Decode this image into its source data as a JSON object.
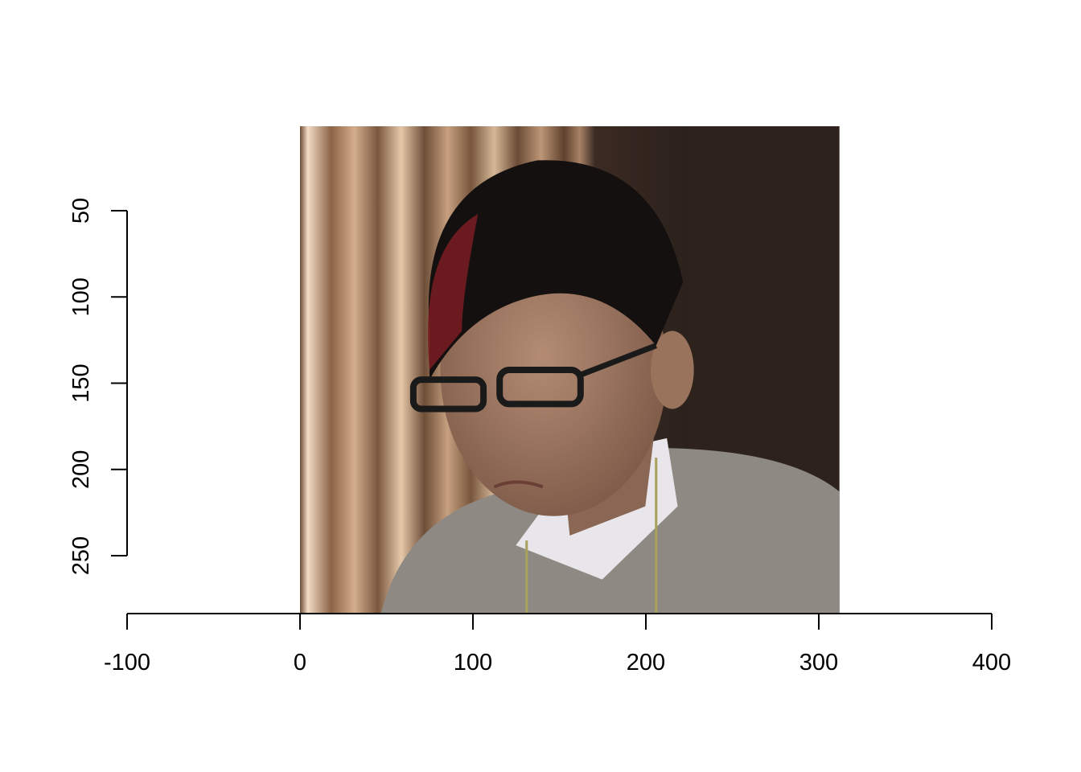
{
  "chart_data": {
    "type": "image",
    "title": "",
    "xlabel": "",
    "ylabel": "",
    "x_axis": {
      "ticks": [
        -100,
        0,
        100,
        200,
        300,
        400
      ],
      "range": [
        -100,
        400
      ]
    },
    "y_axis": {
      "ticks": [
        50,
        100,
        150,
        200,
        250
      ],
      "range": [
        50,
        250
      ],
      "reversed": true
    },
    "image_extent": {
      "x": [
        0,
        312
      ],
      "y": [
        0,
        282
      ]
    },
    "image_content": "photo-of-person-with-glasses",
    "colors": {
      "curtain_light": "#c9a27e",
      "curtain_dark": "#5a3d2a",
      "background_dark": "#2e221d",
      "hair": "#141010",
      "hair_red": "#7a1c22",
      "skin": "#a07a64",
      "sweater": "#8e8a83",
      "collar": "#e8e6ea",
      "glasses": "#1b1a1a"
    }
  }
}
